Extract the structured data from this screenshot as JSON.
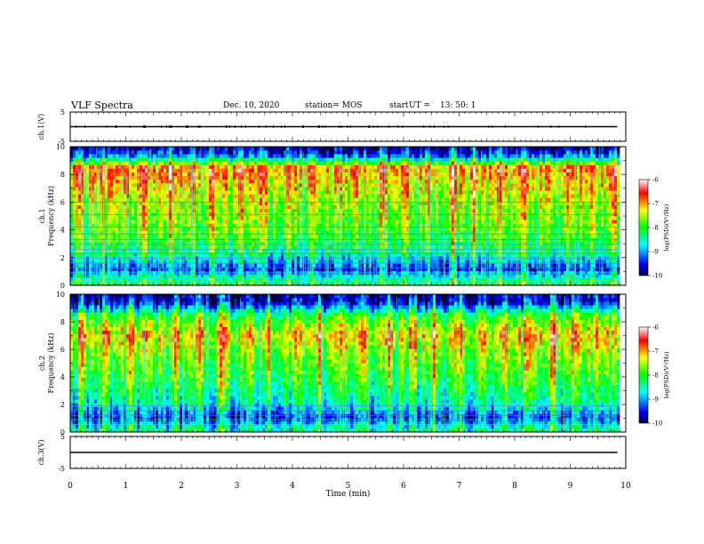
{
  "header": {
    "title": "VLF Spectra",
    "date": "Dec. 10, 2020",
    "station": "station= MOS",
    "start_label": "start",
    "ut_label": "UT  =",
    "ut_value": "13: 50: 1"
  },
  "colors": {
    "background": "#ffffff",
    "axis": "#000000",
    "colormap": [
      "#000040",
      "#0000ff",
      "#00ffff",
      "#00ff00",
      "#ffff00",
      "#ff0000",
      "#ffffff"
    ]
  },
  "chart_data": [
    {
      "type": "line",
      "panel": "ch1-voltage",
      "ylabel": "ch.1(V)",
      "ylim": [
        -5,
        5
      ],
      "yticks": [
        "5",
        "-5"
      ],
      "series": [
        {
          "x": [
            0,
            9.85
          ],
          "y": [
            0,
            0
          ]
        }
      ]
    },
    {
      "type": "heatmap",
      "panel": "ch1-spectrogram",
      "ylabel_line1": "ch.1",
      "ylabel_line2": "Frequency (kHz)",
      "ylim": [
        0,
        10
      ],
      "yticks": [
        "0",
        "2",
        "4",
        "6",
        "8",
        "10"
      ],
      "xlim": [
        0,
        10
      ],
      "data_end_min": 9.85,
      "color_scale": {
        "label": "log(PSD)(V²/Hz)",
        "range": [
          -10,
          -6
        ],
        "ticks": [
          "-6",
          "-7",
          "-8",
          "-9",
          "-10"
        ]
      },
      "band_profile_khz": [
        0.3,
        1.2,
        2.5,
        4.0,
        6.0,
        8.5,
        9.3,
        9.8
      ],
      "band_level_log_psd": [
        -8.2,
        -9.5,
        -8.3,
        -7.9,
        -7.6,
        -7.0,
        -9.2,
        -9.8
      ],
      "horizontal_lines_khz": [
        0.3,
        0.55,
        0.9,
        1.25,
        1.6,
        1.95,
        2.3,
        2.6,
        2.95,
        3.3,
        3.7,
        4.2,
        5.1,
        6.0
      ],
      "peak_times_min": [
        0.12,
        0.55,
        0.97,
        1.31,
        1.75,
        2.17,
        2.55,
        3.05,
        3.47,
        3.92,
        4.33,
        4.78,
        5.12,
        5.58,
        6.04,
        6.41,
        6.86,
        7.25,
        7.68,
        8.11,
        8.57,
        8.93,
        9.39,
        9.78
      ]
    },
    {
      "type": "heatmap",
      "panel": "ch2-spectrogram",
      "ylabel_line1": "ch.2",
      "ylabel_line2": "Frequency (kHz)",
      "ylim": [
        0,
        10
      ],
      "yticks": [
        "0",
        "2",
        "4",
        "6",
        "8",
        "10"
      ],
      "xlim": [
        0,
        10
      ],
      "data_end_min": 9.85,
      "color_scale": {
        "label": "log(PSD)(V²/Hz)",
        "range": [
          -10,
          -6
        ],
        "ticks": [
          "-6",
          "-7",
          "-8",
          "-9",
          "-10"
        ]
      },
      "band_profile_khz": [
        0.3,
        1.0,
        2.0,
        4.0,
        5.5,
        7.0,
        8.5,
        9.5
      ],
      "band_level_log_psd": [
        -8.6,
        -9.6,
        -8.7,
        -8.1,
        -7.8,
        -7.3,
        -8.2,
        -9.8
      ],
      "horizontal_lines_khz": [
        0.55,
        0.9,
        1.2,
        1.55,
        1.9
      ],
      "peak_times_min": [
        0.2,
        0.62,
        1.05,
        1.42,
        1.88,
        2.31,
        2.71,
        3.18,
        3.55,
        4.02,
        4.46,
        4.88,
        5.27,
        5.7,
        6.15,
        6.52,
        6.97,
        7.38,
        7.8,
        8.22,
        8.66,
        9.05,
        9.47
      ]
    },
    {
      "type": "line",
      "panel": "ch3-voltage",
      "ylabel": "ch.3(V)",
      "ylim": [
        -5,
        5
      ],
      "yticks": [
        "5",
        "-5"
      ],
      "series": [
        {
          "x": [
            0,
            9.85
          ],
          "y": [
            0,
            0
          ]
        }
      ]
    }
  ],
  "x_axis": {
    "label": "Time (min)",
    "range": [
      0,
      10
    ],
    "ticks": [
      "0",
      "1",
      "2",
      "3",
      "4",
      "5",
      "6",
      "7",
      "8",
      "9",
      "10"
    ]
  }
}
